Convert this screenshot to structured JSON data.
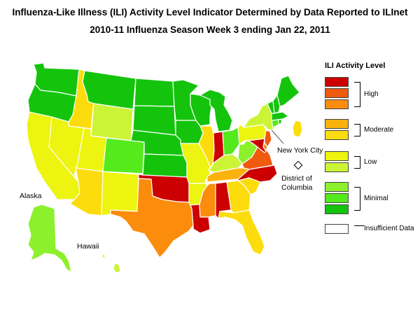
{
  "title_line1": "Influenza-Like Illness (ILI) Activity Level Indicator Determined by Data Reported to ILInet",
  "title_line2": "2010-11  Influenza Season Week  3 ending Jan 22, 2011",
  "labels": {
    "alaska": "Alaska",
    "hawaii": "Hawaii",
    "nyc": "New York City",
    "dc_line1": "District of",
    "dc_line2": "Columbia"
  },
  "legend": {
    "title": "ILI Activity Level",
    "levels": [
      {
        "level": 10,
        "color": "#cc0000"
      },
      {
        "level": 9,
        "color": "#f05a0f"
      },
      {
        "level": 8,
        "color": "#fc8c0c"
      },
      {
        "level": 7,
        "color": "#fcb20c"
      },
      {
        "level": 6,
        "color": "#fcdc0c"
      },
      {
        "level": 5,
        "color": "#ecf410"
      },
      {
        "level": 4,
        "color": "#ccf436"
      },
      {
        "level": 3,
        "color": "#8cf02c"
      },
      {
        "level": 2,
        "color": "#54ea1c"
      },
      {
        "level": 1,
        "color": "#14c40c"
      },
      {
        "level": 0,
        "color": "#ffffff"
      }
    ],
    "groups": [
      {
        "label": "High"
      },
      {
        "label": "Moderate"
      },
      {
        "label": "Low"
      },
      {
        "label": "Minimal"
      }
    ],
    "insufficient_label": "Insufficient Data"
  },
  "state_levels": {
    "WA": 1,
    "OR": 1,
    "ID": 6,
    "MT": 1,
    "WY": 4,
    "CA": 5,
    "NV": 5,
    "UT": 5,
    "AZ": 6,
    "CO": 2,
    "NM": 5,
    "ND": 1,
    "SD": 1,
    "NE": 1,
    "KS": 1,
    "OK": 10,
    "TX": 8,
    "MN": 1,
    "IA": 1,
    "MO": 5,
    "AR": 5,
    "LA": 10,
    "WI": 1,
    "IL": 6,
    "MI": 1,
    "IN": 10,
    "OH": 2,
    "KY": 4,
    "TN": 7,
    "MS": 8,
    "AL": 10,
    "GA": 6,
    "FL": 6,
    "SC": 6,
    "NC": 10,
    "VA": 9,
    "WV": 3,
    "PA": 5,
    "NY": 4,
    "NJ": 9,
    "DE": 8,
    "MD": 10,
    "CT": 2,
    "RI": 1,
    "MA": 1,
    "VT": 1,
    "NH": 1,
    "ME": 1,
    "AK": 3,
    "HI": 4,
    "NYC": 6,
    "DC": 0
  }
}
